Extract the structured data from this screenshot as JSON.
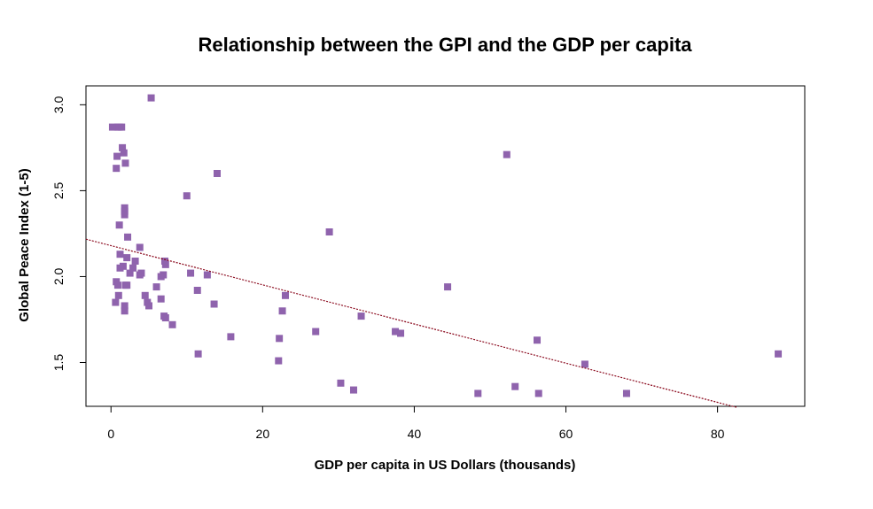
{
  "chart_data": {
    "type": "scatter",
    "title": "Relationship between the GPI and the GDP per capita",
    "xlabel": "GDP per capita in US Dollars (thousands)",
    "ylabel": "Global Peace Index (1-5)",
    "xlim": [
      -3.3,
      91.5
    ],
    "ylim": [
      1.245,
      3.11
    ],
    "xticks": [
      0,
      20,
      40,
      60,
      80
    ],
    "yticks": [
      1.5,
      2.0,
      2.5,
      3.0
    ],
    "xtick_labels": [
      "0",
      "20",
      "40",
      "60",
      "80"
    ],
    "ytick_labels": [
      "1.5",
      "2.0",
      "2.5",
      "3.0"
    ],
    "grid": false,
    "point_color": "#8F63AD",
    "trend_color": "#8B0A1E",
    "series": [
      {
        "points": [
          [
            0.2,
            2.87
          ],
          [
            0.9,
            2.87
          ],
          [
            1.1,
            2.87
          ],
          [
            1.4,
            2.87
          ],
          [
            1.5,
            2.75
          ],
          [
            1.7,
            2.72
          ],
          [
            1.9,
            2.66
          ],
          [
            0.8,
            2.7
          ],
          [
            0.7,
            2.63
          ],
          [
            5.3,
            3.04
          ],
          [
            14.0,
            2.6
          ],
          [
            10.0,
            2.47
          ],
          [
            1.8,
            2.4
          ],
          [
            1.8,
            2.38
          ],
          [
            1.8,
            2.36
          ],
          [
            1.1,
            2.3
          ],
          [
            2.2,
            2.23
          ],
          [
            3.8,
            2.17
          ],
          [
            1.2,
            2.13
          ],
          [
            2.1,
            2.11
          ],
          [
            3.2,
            2.09
          ],
          [
            7.1,
            2.09
          ],
          [
            7.2,
            2.07
          ],
          [
            1.6,
            2.06
          ],
          [
            1.2,
            2.05
          ],
          [
            2.9,
            2.05
          ],
          [
            2.5,
            2.02
          ],
          [
            4.0,
            2.02
          ],
          [
            3.8,
            2.01
          ],
          [
            10.5,
            2.02
          ],
          [
            12.7,
            2.01
          ],
          [
            6.9,
            2.01
          ],
          [
            6.6,
            2.0
          ],
          [
            0.7,
            1.97
          ],
          [
            0.9,
            1.95
          ],
          [
            1.9,
            1.95
          ],
          [
            2.1,
            1.95
          ],
          [
            6.0,
            1.94
          ],
          [
            11.4,
            1.92
          ],
          [
            4.5,
            1.89
          ],
          [
            1.0,
            1.89
          ],
          [
            6.6,
            1.87
          ],
          [
            4.8,
            1.85
          ],
          [
            0.6,
            1.85
          ],
          [
            5.0,
            1.83
          ],
          [
            1.8,
            1.83
          ],
          [
            1.8,
            1.8
          ],
          [
            13.6,
            1.84
          ],
          [
            7.0,
            1.77
          ],
          [
            7.2,
            1.76
          ],
          [
            8.1,
            1.72
          ],
          [
            23.0,
            1.89
          ],
          [
            22.6,
            1.8
          ],
          [
            33.0,
            1.77
          ],
          [
            27.0,
            1.68
          ],
          [
            15.8,
            1.65
          ],
          [
            22.2,
            1.64
          ],
          [
            37.5,
            1.68
          ],
          [
            38.2,
            1.67
          ],
          [
            44.4,
            1.94
          ],
          [
            28.8,
            2.26
          ],
          [
            52.2,
            2.71
          ],
          [
            11.5,
            1.55
          ],
          [
            22.1,
            1.51
          ],
          [
            56.2,
            1.63
          ],
          [
            62.5,
            1.49
          ],
          [
            88.0,
            1.55
          ],
          [
            30.3,
            1.38
          ],
          [
            32.0,
            1.34
          ],
          [
            48.4,
            1.32
          ],
          [
            53.3,
            1.36
          ],
          [
            56.4,
            1.32
          ],
          [
            68.0,
            1.32
          ]
        ]
      }
    ],
    "trendline": {
      "intercept": 2.18,
      "slope": -0.0114,
      "x_range": [
        -3.3,
        82.5
      ]
    }
  }
}
